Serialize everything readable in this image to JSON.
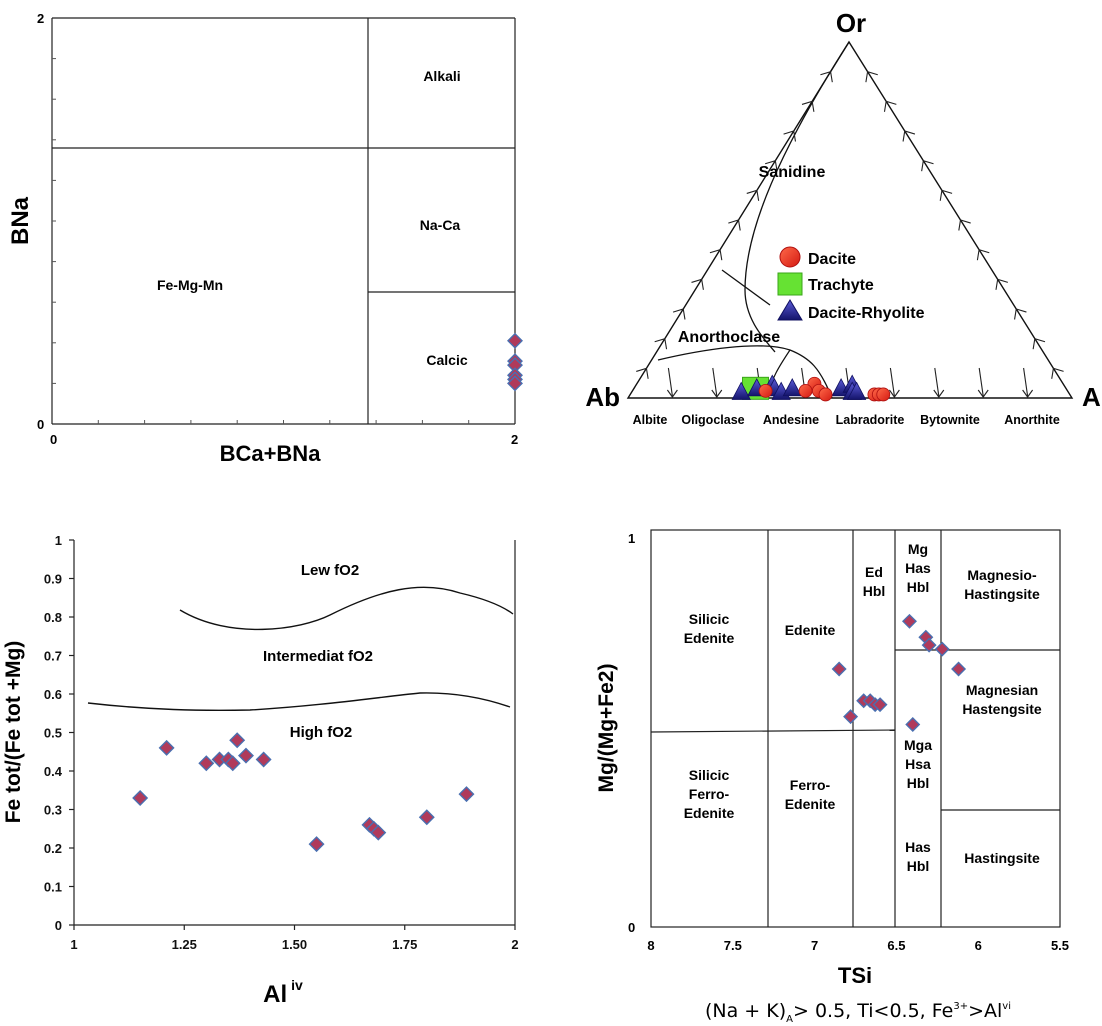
{
  "chart_data": [
    {
      "type": "scatter",
      "ylabel": "BNa",
      "xlabel": "BCa+BNa",
      "xlim": [
        0,
        2
      ],
      "ylim": [
        0,
        2
      ],
      "x_tick_labels": [
        "0",
        "2"
      ],
      "y_tick_labels": [
        "0",
        "2"
      ],
      "field_labels": [
        "Alkali",
        "Na-Ca",
        "Fe-Mg-Mn",
        "Calcic"
      ],
      "points": [
        {
          "x": 2.0,
          "y": 0.41
        },
        {
          "x": 2.0,
          "y": 0.31
        },
        {
          "x": 2.0,
          "y": 0.29
        },
        {
          "x": 2.0,
          "y": 0.24
        },
        {
          "x": 2.0,
          "y": 0.22
        },
        {
          "x": 2.0,
          "y": 0.2
        }
      ],
      "colors": {
        "marker_fill": "#b03a5b",
        "marker_edge": "#4a6fb0"
      }
    },
    {
      "type": "scatter",
      "subtype": "ternary",
      "apex_labels": {
        "top": "Or",
        "left": "Ab",
        "right": "An"
      },
      "field_labels": [
        "Sanidine",
        "Anorthoclase"
      ],
      "base_labels": [
        "Albite",
        "Oligoclase",
        "Andesine",
        "Labradorite",
        "Bytownite",
        "Anorthite"
      ],
      "legend": [
        {
          "name": "Dacite",
          "color": "#e8261f",
          "marker": "circle"
        },
        {
          "name": "Trachyte",
          "color": "#66e233",
          "marker": "square"
        },
        {
          "name": "Dacite-Rhyolite",
          "color": "#1f1f8f",
          "marker": "triangle"
        }
      ],
      "legend_position": "center",
      "points": {
        "Trachyte": [
          {
            "An": 27,
            "Or": 3
          }
        ],
        "Dacite": [
          {
            "An": 40,
            "Or": 4
          },
          {
            "An": 39,
            "Or": 2
          },
          {
            "An": 42,
            "Or": 2
          },
          {
            "An": 30,
            "Or": 2
          },
          {
            "An": 44,
            "Or": 1
          },
          {
            "An": 55,
            "Or": 1
          },
          {
            "An": 56,
            "Or": 1
          },
          {
            "An": 57,
            "Or": 1
          }
        ],
        "Dacite-Rhyolite": [
          {
            "An": 25,
            "Or": 1
          },
          {
            "An": 28,
            "Or": 2
          },
          {
            "An": 31,
            "Or": 3
          },
          {
            "An": 32,
            "Or": 2
          },
          {
            "An": 34,
            "Or": 1
          },
          {
            "An": 36,
            "Or": 2
          },
          {
            "An": 47,
            "Or": 2
          },
          {
            "An": 49,
            "Or": 3
          },
          {
            "An": 50,
            "Or": 1
          },
          {
            "An": 51,
            "Or": 1
          }
        ]
      }
    },
    {
      "type": "scatter",
      "ylabel": "Fe tot/(Fe tot +Mg)",
      "xlabel_main": "Al",
      "xlabel_sup": "iv",
      "xlim": [
        1,
        2
      ],
      "ylim": [
        0,
        1
      ],
      "x_ticks": [
        "1",
        "1.25",
        "1.50",
        "1.75",
        "2"
      ],
      "y_ticks": [
        "0",
        "0.1",
        "0.2",
        "0.3",
        "0.4",
        "0.5",
        "0.6",
        "0.7",
        "0.8",
        "0.9",
        "1"
      ],
      "field_labels": [
        "Lew fO2",
        "Intermediat fO2",
        "High fO2"
      ],
      "points": [
        {
          "x": 1.15,
          "y": 0.33
        },
        {
          "x": 1.21,
          "y": 0.46
        },
        {
          "x": 1.3,
          "y": 0.42
        },
        {
          "x": 1.33,
          "y": 0.43
        },
        {
          "x": 1.35,
          "y": 0.43
        },
        {
          "x": 1.36,
          "y": 0.42
        },
        {
          "x": 1.37,
          "y": 0.48
        },
        {
          "x": 1.39,
          "y": 0.44
        },
        {
          "x": 1.43,
          "y": 0.43
        },
        {
          "x": 1.55,
          "y": 0.21
        },
        {
          "x": 1.67,
          "y": 0.26
        },
        {
          "x": 1.68,
          "y": 0.25
        },
        {
          "x": 1.69,
          "y": 0.24
        },
        {
          "x": 1.8,
          "y": 0.28
        },
        {
          "x": 1.89,
          "y": 0.34
        }
      ]
    },
    {
      "type": "scatter",
      "ylabel": "Mg/(Mg+Fe2)",
      "xlabel": "TSi",
      "xlim": [
        8,
        5.5
      ],
      "ylim": [
        0,
        1
      ],
      "x_ticks": [
        "8",
        "7.5",
        "7",
        "6.5",
        "6",
        "5.5"
      ],
      "y_ticks": [
        "0",
        "1"
      ],
      "field_labels": [
        [
          "Silicic",
          "Edenite"
        ],
        [
          "Edenite"
        ],
        [
          "Ed",
          "Hbl"
        ],
        [
          "Mg",
          "Has",
          "Hbl"
        ],
        [
          "Magnesio-",
          "Hastingsite"
        ],
        [
          "Silicic",
          "Ferro-",
          "Edenite"
        ],
        [
          "Ferro-",
          "Edenite"
        ],
        [
          "Mga",
          "Hsa",
          "Hbl"
        ],
        [
          "Magnesian",
          "Hastengsite"
        ],
        [
          "Has",
          "Hbl"
        ],
        [
          "Hastingsite"
        ]
      ],
      "points": [
        {
          "x": 6.85,
          "y": 0.65
        },
        {
          "x": 6.78,
          "y": 0.53
        },
        {
          "x": 6.7,
          "y": 0.57
        },
        {
          "x": 6.66,
          "y": 0.57
        },
        {
          "x": 6.63,
          "y": 0.56
        },
        {
          "x": 6.6,
          "y": 0.56
        },
        {
          "x": 6.42,
          "y": 0.77
        },
        {
          "x": 6.4,
          "y": 0.51
        },
        {
          "x": 6.32,
          "y": 0.73
        },
        {
          "x": 6.3,
          "y": 0.71
        },
        {
          "x": 6.22,
          "y": 0.7
        },
        {
          "x": 6.12,
          "y": 0.65
        }
      ],
      "note": {
        "parts": [
          "(Na + K)",
          "A",
          "> 0.5, Ti<0.5, Fe",
          "3+",
          ">Al",
          "vi"
        ]
      }
    }
  ]
}
